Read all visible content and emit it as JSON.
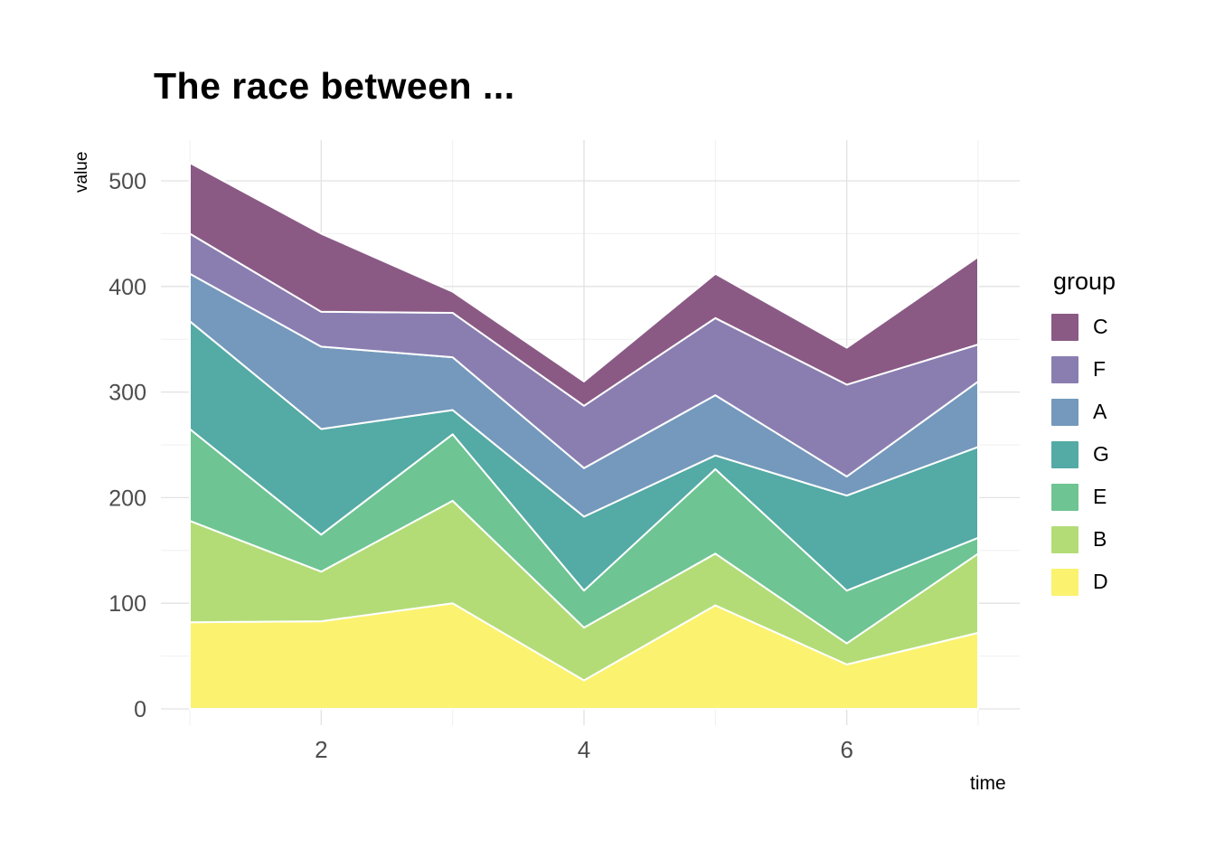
{
  "chart_data": {
    "type": "area",
    "stacked": true,
    "title": "The race between ...",
    "xlabel": "time",
    "ylabel": "value",
    "legend_title": "group",
    "legend_position": "right",
    "x": [
      1,
      2,
      3,
      4,
      5,
      6,
      7
    ],
    "x_ticks": [
      2,
      4,
      6
    ],
    "x_minor_ticks": [
      1,
      3,
      5,
      7
    ],
    "y_ticks": [
      0,
      100,
      200,
      300,
      400,
      500
    ],
    "y_minor_ticks": [
      50,
      150,
      250,
      350,
      450
    ],
    "ylim": [
      0,
      540
    ],
    "grid": true,
    "panel_background": "#ffffff",
    "grid_major_color": "#e2e2e2",
    "grid_minor_color": "#efefef",
    "tick_label_color": "#4d4d4d",
    "area_stroke_color": "#ffffff",
    "stack_order_bottom_to_top": [
      "D",
      "B",
      "E",
      "G",
      "A",
      "F",
      "C"
    ],
    "series": [
      {
        "name": "C",
        "color": "#8a5a85",
        "values": [
          67,
          74,
          20,
          23,
          42,
          35,
          83
        ]
      },
      {
        "name": "F",
        "color": "#8a7eb1",
        "values": [
          38,
          33,
          42,
          59,
          73,
          87,
          35
        ]
      },
      {
        "name": "A",
        "color": "#7499bc",
        "values": [
          45,
          78,
          50,
          46,
          57,
          18,
          62
        ]
      },
      {
        "name": "G",
        "color": "#54aaa5",
        "values": [
          102,
          100,
          23,
          70,
          13,
          90,
          86
        ]
      },
      {
        "name": "E",
        "color": "#6ec493",
        "values": [
          87,
          35,
          63,
          35,
          80,
          50,
          15
        ]
      },
      {
        "name": "B",
        "color": "#b3dc77",
        "values": [
          96,
          47,
          97,
          50,
          49,
          20,
          75
        ]
      },
      {
        "name": "D",
        "color": "#fbf270",
        "values": [
          82,
          83,
          100,
          27,
          98,
          42,
          72
        ]
      }
    ]
  }
}
